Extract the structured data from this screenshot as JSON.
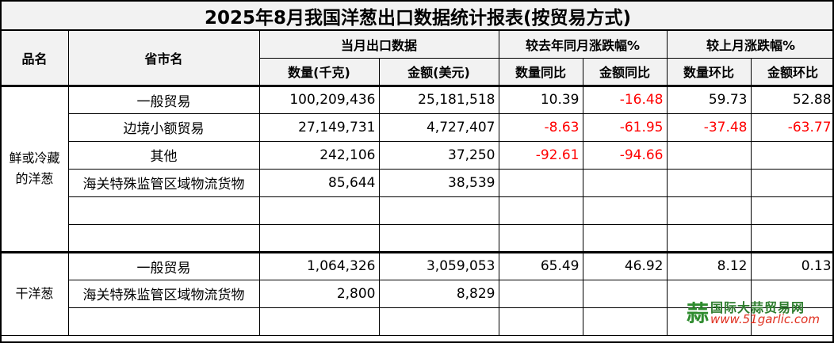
{
  "title": "2025年8月我国洋葱出口数据统计报表(按贸易方式)",
  "headers": {
    "product": "品名",
    "region": "省市名",
    "group_current": "当月出口数据",
    "group_yoy": "较去年同月涨跌幅%",
    "group_mom": "较上月涨跌幅%",
    "qty": "数量(千克)",
    "amount": "金额(美元)",
    "qty_yoy": "数量同比",
    "amount_yoy": "金额同比",
    "qty_mom": "数量环比",
    "amount_mom": "金额环比"
  },
  "groups": [
    {
      "name": "鲜或冷藏的洋葱",
      "rows": [
        {
          "region": "一般贸易",
          "qty": "100,209,436",
          "amount": "25,181,518",
          "qty_yoy": "10.39",
          "amount_yoy": "-16.48",
          "qty_mom": "59.73",
          "amount_mom": "52.88"
        },
        {
          "region": "边境小额贸易",
          "qty": "27,149,731",
          "amount": "4,727,407",
          "qty_yoy": "-8.63",
          "amount_yoy": "-61.95",
          "qty_mom": "-37.48",
          "amount_mom": "-63.77"
        },
        {
          "region": "其他",
          "qty": "242,106",
          "amount": "37,250",
          "qty_yoy": "-92.61",
          "amount_yoy": "-94.66",
          "qty_mom": "",
          "amount_mom": ""
        },
        {
          "region": "海关特殊监管区域物流货物",
          "qty": "85,644",
          "amount": "38,539",
          "qty_yoy": "",
          "amount_yoy": "",
          "qty_mom": "",
          "amount_mom": ""
        },
        {
          "region": "",
          "qty": "",
          "amount": "",
          "qty_yoy": "",
          "amount_yoy": "",
          "qty_mom": "",
          "amount_mom": ""
        },
        {
          "region": "",
          "qty": "",
          "amount": "",
          "qty_yoy": "",
          "amount_yoy": "",
          "qty_mom": "",
          "amount_mom": ""
        }
      ]
    },
    {
      "name": "干洋葱",
      "rows": [
        {
          "region": "一般贸易",
          "qty": "1,064,326",
          "amount": "3,059,053",
          "qty_yoy": "65.49",
          "amount_yoy": "46.92",
          "qty_mom": "8.12",
          "amount_mom": "0.13"
        },
        {
          "region": "海关特殊监管区域物流货物",
          "qty": "2,800",
          "amount": "8,829",
          "qty_yoy": "",
          "amount_yoy": "",
          "qty_mom": "",
          "amount_mom": ""
        },
        {
          "region": "",
          "qty": "",
          "amount": "",
          "qty_yoy": "",
          "amount_yoy": "",
          "qty_mom": "",
          "amount_mom": ""
        }
      ]
    }
  ],
  "watermark": {
    "name": "国际大蒜贸易网",
    "url": "www.51garlic.com",
    "glyph": "蒜"
  },
  "colors": {
    "negative": "#ff0000",
    "header_bg": "#f2f2f2",
    "logo_green": "#2e7d2e",
    "logo_red": "#e03020"
  }
}
